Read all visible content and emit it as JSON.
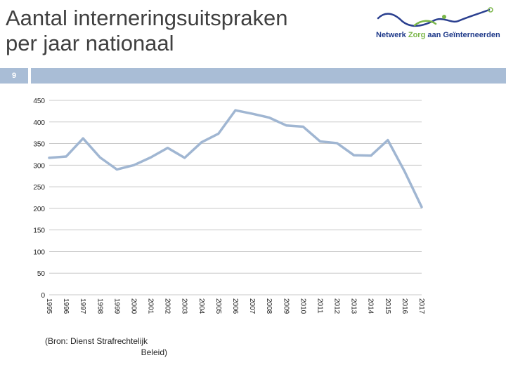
{
  "title": {
    "line1": "Aantal interneringsuitspraken",
    "line2": "per jaar nationaal"
  },
  "logo": {
    "text_main": "Netwerk ",
    "text_accent": "Zorg",
    "text_rest": " aan Geïnterneerden"
  },
  "slide_number": "9",
  "source": {
    "line1": "(Bron: Dienst Strafrechtelijk",
    "line2": "Beleid)"
  },
  "colors": {
    "line": "#a0b6d2",
    "grid": "#c8c8c8",
    "band": "#a9bdd6",
    "text": "#404040"
  },
  "chart_data": {
    "type": "line",
    "title": "Aantal interneringsuitspraken per jaar nationaal",
    "xlabel": "",
    "ylabel": "",
    "ylim": [
      0,
      450
    ],
    "yticks": [
      0,
      50,
      100,
      150,
      200,
      250,
      300,
      350,
      400,
      450
    ],
    "grid": true,
    "categories": [
      "1995",
      "1996",
      "1997",
      "1998",
      "1999",
      "2000",
      "2001",
      "2002",
      "2003",
      "2004",
      "2005",
      "2006",
      "2007",
      "2008",
      "2009",
      "2010",
      "2011",
      "2012",
      "2013",
      "2014",
      "2015",
      "2016",
      "2017"
    ],
    "series": [
      {
        "name": "Interneringsuitspraken",
        "values": [
          317,
          320,
          362,
          318,
          290,
          300,
          318,
          340,
          317,
          353,
          373,
          427,
          419,
          410,
          392,
          389,
          355,
          351,
          323,
          322,
          358,
          285,
          203
        ]
      }
    ]
  }
}
